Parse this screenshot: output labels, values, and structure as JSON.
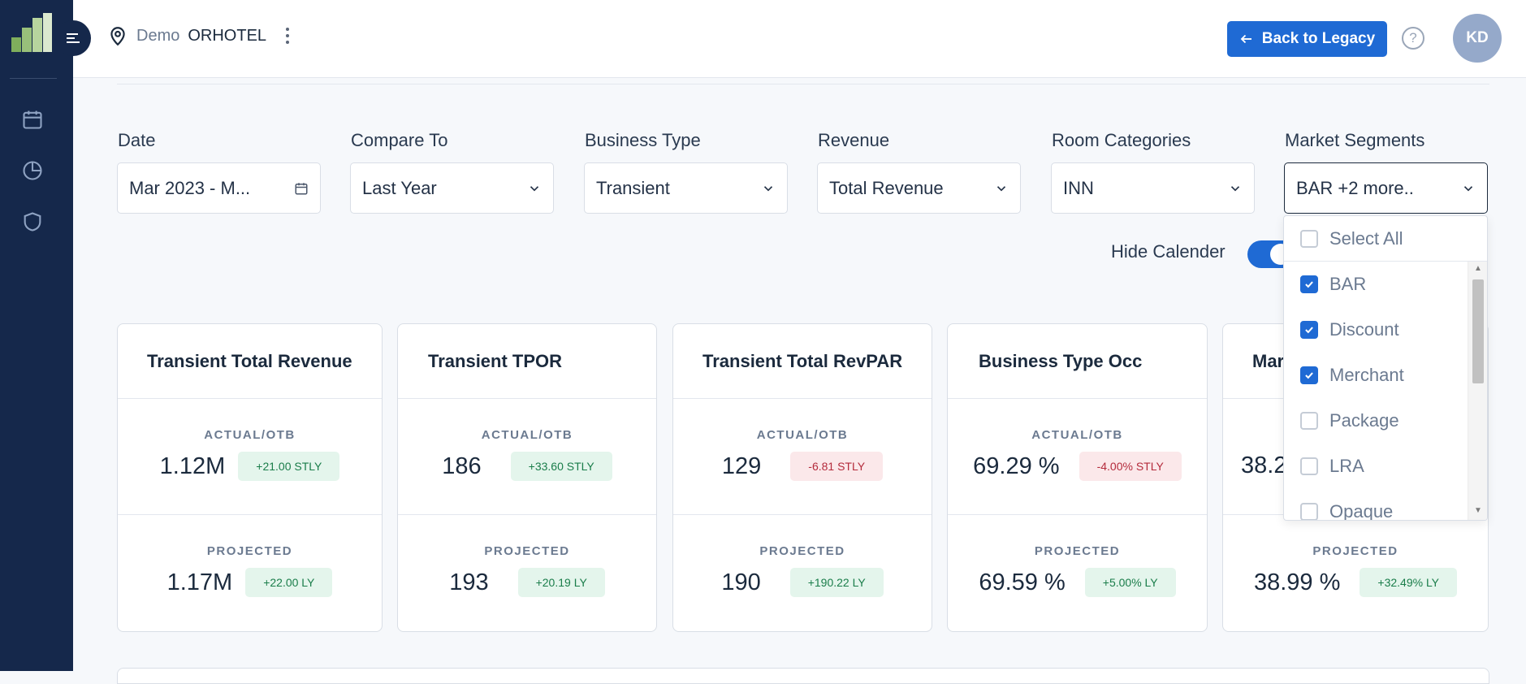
{
  "header": {
    "hotel_prefix": "Demo",
    "hotel_name": "ORHOTEL",
    "back_label": "Back to Legacy",
    "help_glyph": "?",
    "avatar_initials": "KD"
  },
  "sidebar": {
    "items": [
      {
        "icon": "calendar-icon"
      },
      {
        "icon": "pie-chart-icon"
      },
      {
        "icon": "shield-icon"
      }
    ]
  },
  "filters": [
    {
      "label": "Date",
      "value": "Mar 2023 - M...",
      "icon": "calendar-icon"
    },
    {
      "label": "Compare To",
      "value": "Last Year",
      "icon": "chevron-down-icon"
    },
    {
      "label": "Business Type",
      "value": "Transient",
      "icon": "chevron-down-icon"
    },
    {
      "label": "Revenue",
      "value": "Total Revenue",
      "icon": "chevron-down-icon"
    },
    {
      "label": "Room Categories",
      "value": "INN",
      "icon": "chevron-down-icon"
    },
    {
      "label": "Market Segments",
      "value": "BAR +2 more..",
      "icon": "chevron-down-icon"
    }
  ],
  "toggle": {
    "label": "Hide Calender",
    "on": true
  },
  "dropdown": {
    "select_all": "Select All",
    "options": [
      {
        "label": "BAR",
        "checked": true
      },
      {
        "label": "Discount",
        "checked": true
      },
      {
        "label": "Merchant",
        "checked": true
      },
      {
        "label": "Package",
        "checked": false
      },
      {
        "label": "LRA",
        "checked": false
      },
      {
        "label": "Opaque",
        "checked": false
      }
    ]
  },
  "cards": [
    {
      "title": "Transient Total Revenue",
      "actual_label": "ACTUAL/OTB",
      "actual": "1.12M",
      "actual_delta": "+21.00 STLY",
      "actual_delta_kind": "pos",
      "projected_label": "PROJECTED",
      "projected": "1.17M",
      "projected_delta": "+22.00 LY",
      "projected_delta_kind": "pos"
    },
    {
      "title": "Transient TPOR",
      "actual_label": "ACTUAL/OTB",
      "actual": "186",
      "actual_delta": "+33.60 STLY",
      "actual_delta_kind": "pos",
      "projected_label": "PROJECTED",
      "projected": "193",
      "projected_delta": "+20.19 LY",
      "projected_delta_kind": "pos"
    },
    {
      "title": "Transient Total RevPAR",
      "actual_label": "ACTUAL/OTB",
      "actual": "129",
      "actual_delta": "-6.81 STLY",
      "actual_delta_kind": "neg",
      "projected_label": "PROJECTED",
      "projected": "190",
      "projected_delta": "+190.22 LY",
      "projected_delta_kind": "pos"
    },
    {
      "title": "Business Type Occ",
      "actual_label": "ACTUAL/OTB",
      "actual": "69.29 %",
      "actual_delta": "-4.00% STLY",
      "actual_delta_kind": "neg",
      "projected_label": "PROJECTED",
      "projected": "69.59 %",
      "projected_delta": "+5.00% LY",
      "projected_delta_kind": "pos"
    },
    {
      "title": "Mar",
      "actual_label": "",
      "actual": "38.2",
      "actual_delta": "",
      "actual_delta_kind": "pos",
      "projected_label": "PROJECTED",
      "projected": "38.99 %",
      "projected_delta": "+32.49% LY",
      "projected_delta_kind": "pos"
    }
  ],
  "colors": {
    "sidebar": "#15284b",
    "accent": "#1f6ad4",
    "positive_bg": "#e4f5ec",
    "positive_text": "#1a7d4a",
    "negative_bg": "#fbe8ea",
    "negative_text": "#b42b3c"
  }
}
